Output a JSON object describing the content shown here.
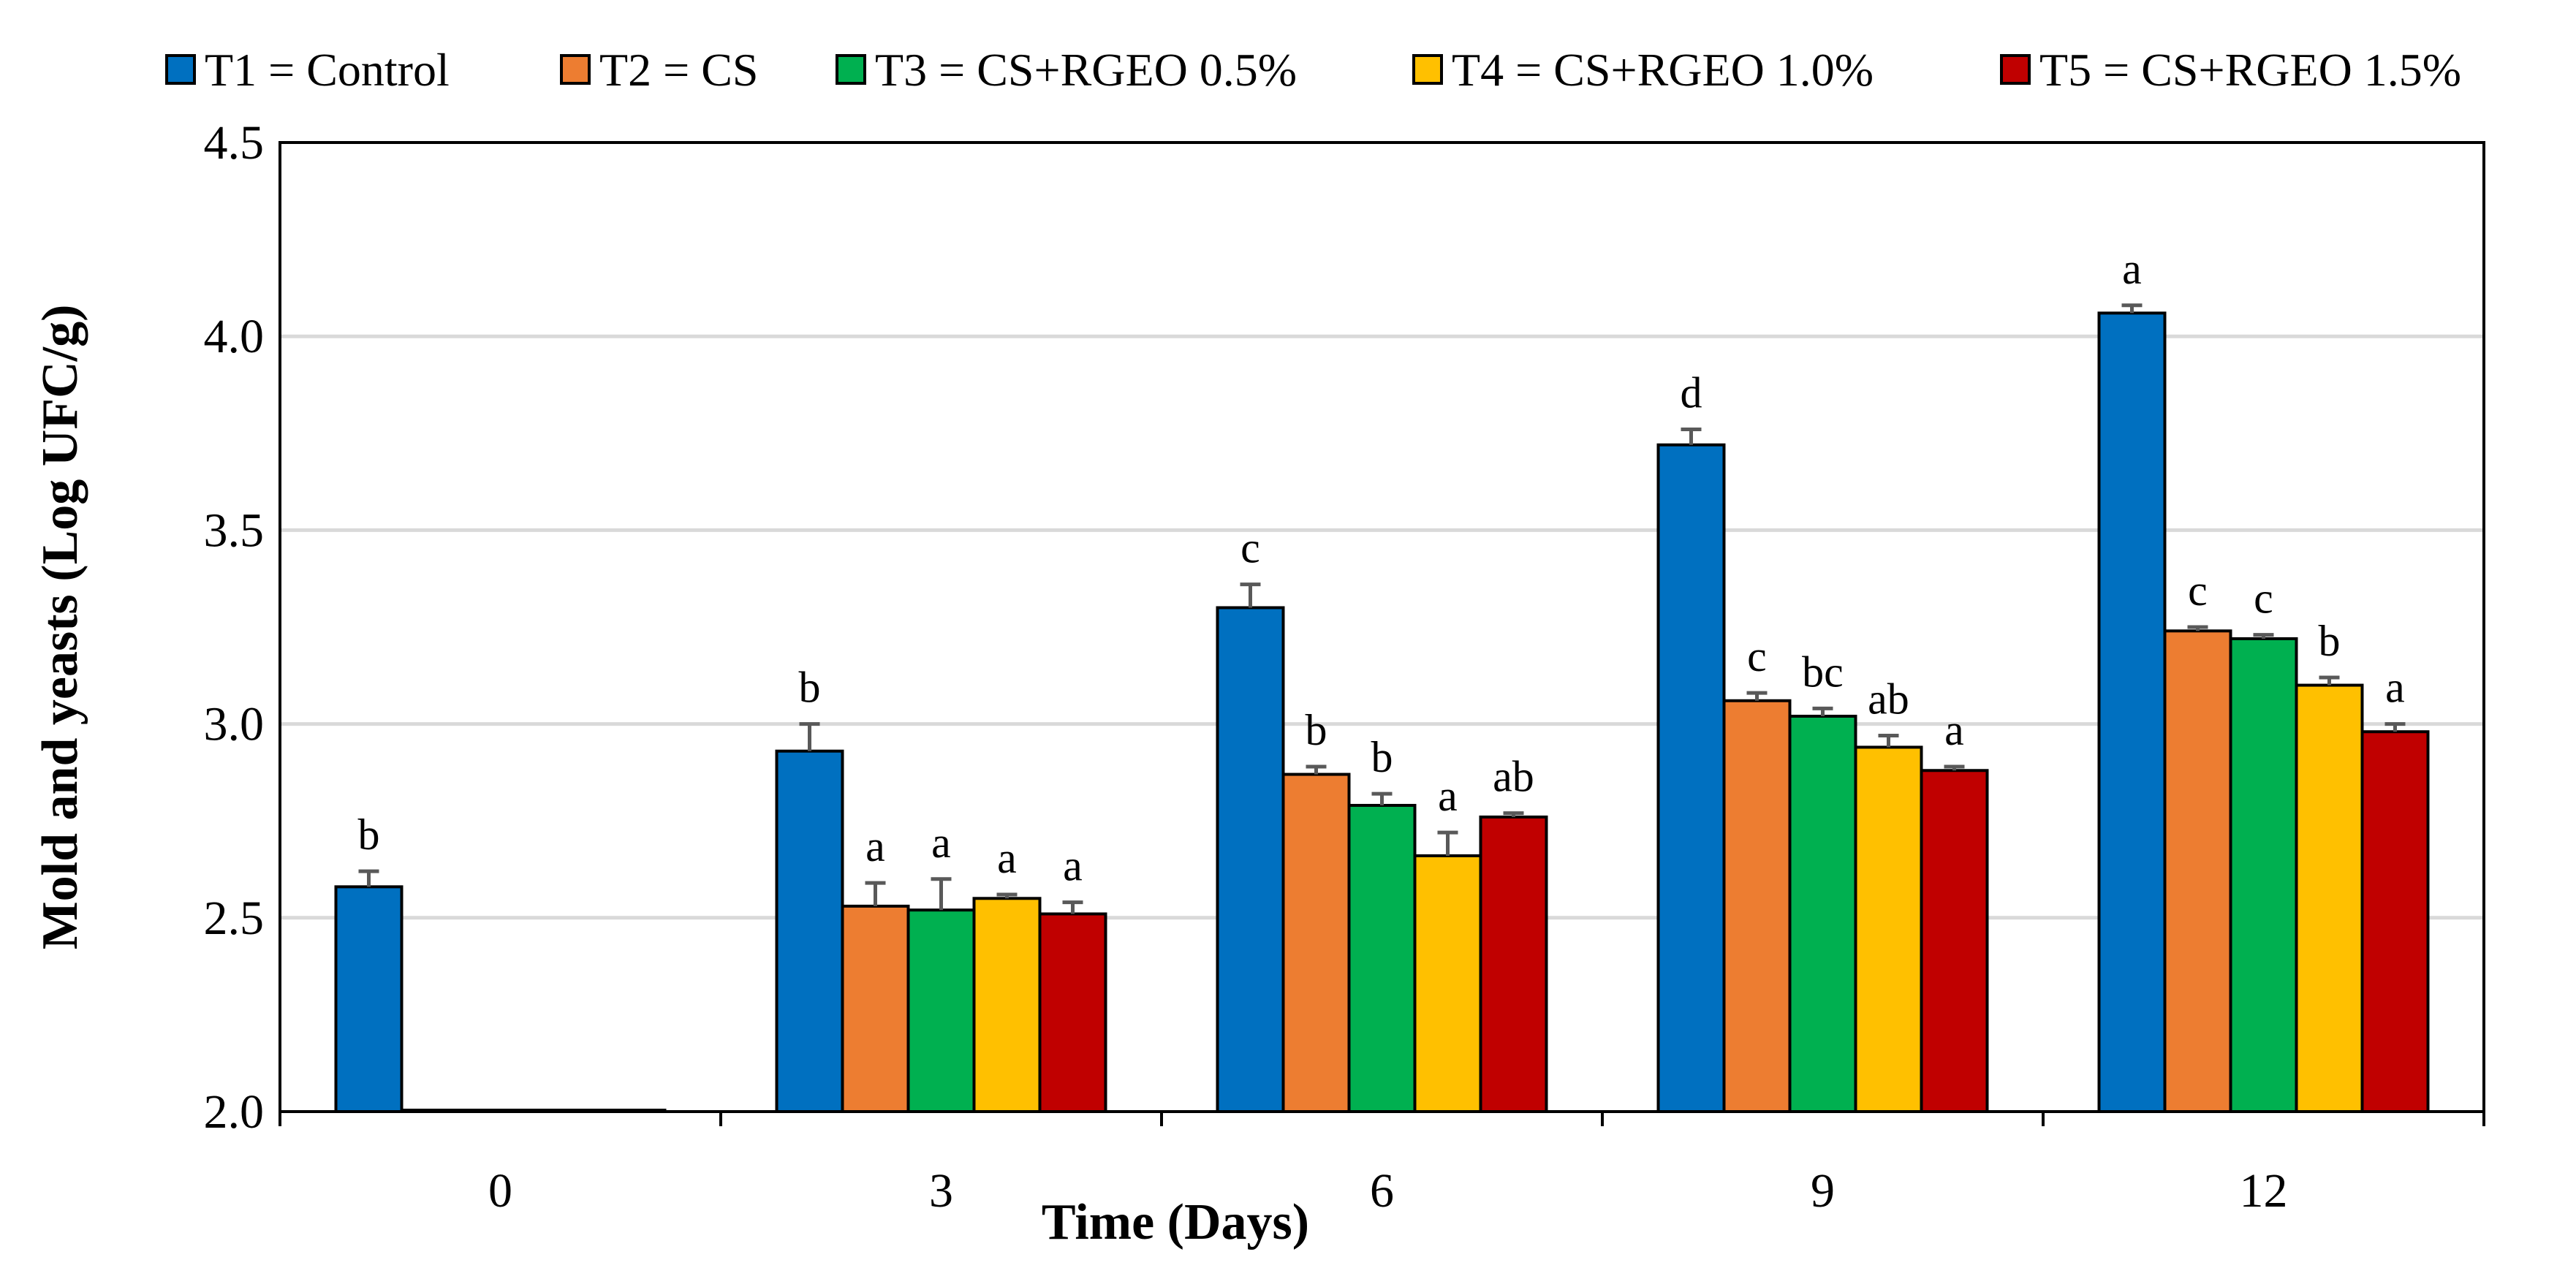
{
  "chart_data": {
    "type": "bar",
    "title": "",
    "xlabel": "Time (Days)",
    "ylabel": "Mold and yeasts (Log UFC/g)",
    "ylim": [
      2.0,
      4.5
    ],
    "yticks": [
      2.0,
      2.5,
      3.0,
      3.5,
      4.0,
      4.5
    ],
    "ytick_labels": [
      "2.0",
      "2.5",
      "3.0",
      "3.5",
      "4.0",
      "4.5"
    ],
    "categories": [
      "0",
      "3",
      "6",
      "9",
      "12"
    ],
    "grid": true,
    "legend_position": "top",
    "series": [
      {
        "name": "T1 = Control",
        "color": "#0070C0",
        "values": [
          2.58,
          2.93,
          3.3,
          3.72,
          4.06
        ],
        "errors": [
          0.04,
          0.07,
          0.06,
          0.04,
          0.02
        ],
        "letters": [
          "b",
          "b",
          "c",
          "d",
          "a"
        ]
      },
      {
        "name": "T2 = CS",
        "color": "#ED7D31",
        "values": [
          2.0,
          2.53,
          2.87,
          3.06,
          3.24
        ],
        "errors": [
          0.0,
          0.06,
          0.02,
          0.02,
          0.01
        ],
        "letters": [
          "",
          "a",
          "b",
          "c",
          "c"
        ]
      },
      {
        "name": "T3 = CS+RGEO 0.5%",
        "color": "#00B050",
        "values": [
          2.0,
          2.52,
          2.79,
          3.02,
          3.22
        ],
        "errors": [
          0.0,
          0.08,
          0.03,
          0.02,
          0.01
        ],
        "letters": [
          "",
          "a",
          "b",
          "bc",
          "c"
        ]
      },
      {
        "name": "T4 = CS+RGEO 1.0%",
        "color": "#FFC000",
        "values": [
          2.0,
          2.55,
          2.66,
          2.94,
          3.1
        ],
        "errors": [
          0.0,
          0.01,
          0.06,
          0.03,
          0.02
        ],
        "letters": [
          "",
          "a",
          "a",
          "ab",
          "b"
        ]
      },
      {
        "name": "T5 = CS+RGEO 1.5%",
        "color": "#C00000",
        "values": [
          2.0,
          2.51,
          2.76,
          2.88,
          2.98
        ],
        "errors": [
          0.0,
          0.03,
          0.01,
          0.01,
          0.02
        ],
        "letters": [
          "",
          "a",
          "ab",
          "a",
          "a"
        ]
      }
    ]
  }
}
